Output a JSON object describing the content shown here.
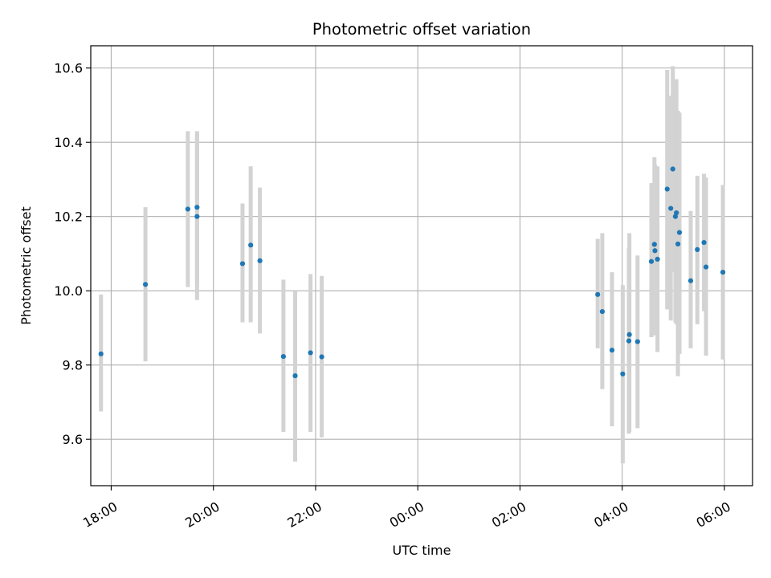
{
  "chart_data": {
    "type": "scatter",
    "title": "Photometric offset variation",
    "xlabel": "UTC time",
    "ylabel": "Photometric offset",
    "grid": true,
    "x_unit": "hours after 00:00 UTC",
    "xlim": [
      -6.4,
      6.55
    ],
    "ylim": [
      9.475,
      10.66
    ],
    "x_ticks": [
      {
        "value": -6,
        "label": "18:00"
      },
      {
        "value": -4,
        "label": "20:00"
      },
      {
        "value": -2,
        "label": "22:00"
      },
      {
        "value": 0,
        "label": "00:00"
      },
      {
        "value": 2,
        "label": "02:00"
      },
      {
        "value": 4,
        "label": "04:00"
      },
      {
        "value": 6,
        "label": "06:00"
      }
    ],
    "y_ticks": [
      {
        "value": 9.6,
        "label": "9.6"
      },
      {
        "value": 9.8,
        "label": "9.8"
      },
      {
        "value": 10.0,
        "label": "10.0"
      },
      {
        "value": 10.2,
        "label": "10.2"
      },
      {
        "value": 10.4,
        "label": "10.4"
      },
      {
        "value": 10.6,
        "label": "10.6"
      }
    ],
    "colors": {
      "point": "#1f77b4",
      "errorbar": "#d3d3d3",
      "grid": "#b0b0b0",
      "axes": "#000000"
    },
    "series": [
      {
        "points": [
          {
            "x": -6.2,
            "y": 9.83,
            "ylow": 9.675,
            "yhigh": 9.99
          },
          {
            "x": -5.33,
            "y": 10.017,
            "ylow": 9.81,
            "yhigh": 10.225
          },
          {
            "x": -4.5,
            "y": 10.22,
            "ylow": 10.01,
            "yhigh": 10.43
          },
          {
            "x": -4.32,
            "y": 10.225,
            "ylow": 10.02,
            "yhigh": 10.43
          },
          {
            "x": -4.32,
            "y": 10.2,
            "ylow": 9.975,
            "yhigh": 10.425
          },
          {
            "x": -3.43,
            "y": 10.073,
            "ylow": 9.915,
            "yhigh": 10.235
          },
          {
            "x": -3.27,
            "y": 10.123,
            "ylow": 9.915,
            "yhigh": 10.335
          },
          {
            "x": -3.09,
            "y": 10.081,
            "ylow": 9.885,
            "yhigh": 10.278
          },
          {
            "x": -2.63,
            "y": 9.823,
            "ylow": 9.62,
            "yhigh": 10.03
          },
          {
            "x": -2.4,
            "y": 9.771,
            "ylow": 9.54,
            "yhigh": 10.0
          },
          {
            "x": -2.1,
            "y": 9.833,
            "ylow": 9.62,
            "yhigh": 10.045
          },
          {
            "x": -1.88,
            "y": 9.822,
            "ylow": 9.605,
            "yhigh": 10.04
          },
          {
            "x": 3.52,
            "y": 9.99,
            "ylow": 9.845,
            "yhigh": 10.14
          },
          {
            "x": 3.61,
            "y": 9.944,
            "ylow": 9.735,
            "yhigh": 10.155
          },
          {
            "x": 3.8,
            "y": 9.84,
            "ylow": 9.635,
            "yhigh": 10.05
          },
          {
            "x": 4.01,
            "y": 9.776,
            "ylow": 9.535,
            "yhigh": 10.015
          },
          {
            "x": 4.13,
            "y": 9.865,
            "ylow": 9.615,
            "yhigh": 10.115
          },
          {
            "x": 4.14,
            "y": 9.882,
            "ylow": 9.62,
            "yhigh": 10.155
          },
          {
            "x": 4.3,
            "y": 9.863,
            "ylow": 9.63,
            "yhigh": 10.095
          },
          {
            "x": 4.57,
            "y": 10.079,
            "ylow": 9.875,
            "yhigh": 10.29
          },
          {
            "x": 4.63,
            "y": 10.125,
            "ylow": 9.89,
            "yhigh": 10.36
          },
          {
            "x": 4.64,
            "y": 10.108,
            "ylow": 9.88,
            "yhigh": 10.34
          },
          {
            "x": 4.69,
            "y": 10.085,
            "ylow": 9.835,
            "yhigh": 10.335
          },
          {
            "x": 4.88,
            "y": 10.274,
            "ylow": 9.95,
            "yhigh": 10.595
          },
          {
            "x": 4.95,
            "y": 10.222,
            "ylow": 9.92,
            "yhigh": 10.525
          },
          {
            "x": 4.99,
            "y": 10.328,
            "ylow": 10.05,
            "yhigh": 10.605
          },
          {
            "x": 5.04,
            "y": 10.2,
            "ylow": 9.915,
            "yhigh": 10.49
          },
          {
            "x": 5.06,
            "y": 10.21,
            "ylow": 9.91,
            "yhigh": 10.57
          },
          {
            "x": 5.09,
            "y": 10.126,
            "ylow": 9.77,
            "yhigh": 10.485
          },
          {
            "x": 5.12,
            "y": 10.157,
            "ylow": 9.83,
            "yhigh": 10.48
          },
          {
            "x": 5.34,
            "y": 10.027,
            "ylow": 9.845,
            "yhigh": 10.215
          },
          {
            "x": 5.47,
            "y": 10.111,
            "ylow": 9.91,
            "yhigh": 10.31
          },
          {
            "x": 5.6,
            "y": 10.13,
            "ylow": 9.945,
            "yhigh": 10.315
          },
          {
            "x": 5.64,
            "y": 10.064,
            "ylow": 9.825,
            "yhigh": 10.305
          },
          {
            "x": 5.97,
            "y": 10.05,
            "ylow": 9.815,
            "yhigh": 10.285
          }
        ]
      }
    ]
  }
}
